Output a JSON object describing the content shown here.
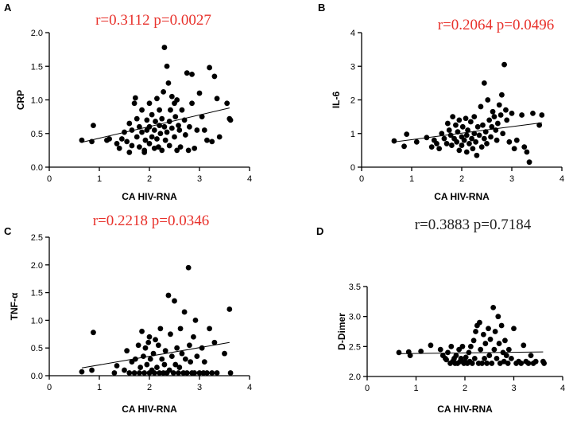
{
  "chart_data": [
    {
      "type": "scatter",
      "panel": "A",
      "stat_text": "r=0.3112  p=0.0027",
      "stat_color": "#e8312b",
      "xlabel": "CA HIV-RNA",
      "ylabel": "CRP",
      "xlim": [
        0,
        4
      ],
      "ylim": [
        0,
        2.0
      ],
      "xticks": [
        0,
        1,
        2,
        3,
        4
      ],
      "yticks": [
        0.0,
        0.5,
        1.0,
        1.5,
        2.0
      ],
      "xtick_labels": [
        "0",
        "1",
        "2",
        "3",
        "4"
      ],
      "ytick_labels": [
        "0.0",
        "0.5",
        "1.0",
        "1.5",
        "2.0"
      ],
      "regression": {
        "x0": 0.65,
        "y0": 0.37,
        "x1": 3.6,
        "y1": 0.88
      },
      "points": [
        [
          0.65,
          0.4
        ],
        [
          0.85,
          0.38
        ],
        [
          0.88,
          0.62
        ],
        [
          1.15,
          0.4
        ],
        [
          1.2,
          0.42
        ],
        [
          1.35,
          0.35
        ],
        [
          1.4,
          0.28
        ],
        [
          1.45,
          0.42
        ],
        [
          1.5,
          0.52
        ],
        [
          1.55,
          0.38
        ],
        [
          1.6,
          0.22
        ],
        [
          1.6,
          0.65
        ],
        [
          1.65,
          0.55
        ],
        [
          1.65,
          0.32
        ],
        [
          1.7,
          0.95
        ],
        [
          1.72,
          1.03
        ],
        [
          1.75,
          0.72
        ],
        [
          1.75,
          0.45
        ],
        [
          1.8,
          0.3
        ],
        [
          1.8,
          0.6
        ],
        [
          1.85,
          0.85
        ],
        [
          1.85,
          0.52
        ],
        [
          1.9,
          0.25
        ],
        [
          1.9,
          0.22
        ],
        [
          1.92,
          0.4
        ],
        [
          1.95,
          0.7
        ],
        [
          1.95,
          0.55
        ],
        [
          2.0,
          0.95
        ],
        [
          2.0,
          0.6
        ],
        [
          2.0,
          0.35
        ],
        [
          2.05,
          0.78
        ],
        [
          2.05,
          0.45
        ],
        [
          2.1,
          0.55
        ],
        [
          2.1,
          0.28
        ],
        [
          2.12,
          0.68
        ],
        [
          2.15,
          1.02
        ],
        [
          2.15,
          0.42
        ],
        [
          2.18,
          0.3
        ],
        [
          2.2,
          0.62
        ],
        [
          2.2,
          0.85
        ],
        [
          2.22,
          0.5
        ],
        [
          2.25,
          0.25
        ],
        [
          2.25,
          0.72
        ],
        [
          2.28,
          1.12
        ],
        [
          2.3,
          1.78
        ],
        [
          2.3,
          0.6
        ],
        [
          2.32,
          0.4
        ],
        [
          2.35,
          1.5
        ],
        [
          2.35,
          0.52
        ],
        [
          2.38,
          1.25
        ],
        [
          2.4,
          0.68
        ],
        [
          2.4,
          0.32
        ],
        [
          2.42,
          0.85
        ],
        [
          2.45,
          1.05
        ],
        [
          2.45,
          0.58
        ],
        [
          2.5,
          0.45
        ],
        [
          2.5,
          0.95
        ],
        [
          2.52,
          0.75
        ],
        [
          2.55,
          0.25
        ],
        [
          2.55,
          1.0
        ],
        [
          2.58,
          0.62
        ],
        [
          2.6,
          0.55
        ],
        [
          2.62,
          0.3
        ],
        [
          2.65,
          0.85
        ],
        [
          2.7,
          0.7
        ],
        [
          2.72,
          0.48
        ],
        [
          2.75,
          1.4
        ],
        [
          2.78,
          0.25
        ],
        [
          2.8,
          0.6
        ],
        [
          2.85,
          1.38
        ],
        [
          2.85,
          0.95
        ],
        [
          2.9,
          0.28
        ],
        [
          2.95,
          0.55
        ],
        [
          3.0,
          1.1
        ],
        [
          3.05,
          0.75
        ],
        [
          3.1,
          0.55
        ],
        [
          3.15,
          0.4
        ],
        [
          3.2,
          1.48
        ],
        [
          3.25,
          0.38
        ],
        [
          3.3,
          1.35
        ],
        [
          3.35,
          1.02
        ],
        [
          3.4,
          0.45
        ],
        [
          3.55,
          0.95
        ],
        [
          3.6,
          0.72
        ],
        [
          3.62,
          0.7
        ]
      ]
    },
    {
      "type": "scatter",
      "panel": "B",
      "stat_text": "r=0.2064   p=0.0496",
      "stat_color": "#e8312b",
      "xlabel": "CA HIV-RNA",
      "ylabel": "IL-6",
      "xlim": [
        0,
        4
      ],
      "ylim": [
        0,
        4
      ],
      "xticks": [
        0,
        1,
        2,
        3,
        4
      ],
      "yticks": [
        0,
        1,
        2,
        3,
        4
      ],
      "xtick_labels": [
        "0",
        "1",
        "2",
        "3",
        "4"
      ],
      "ytick_labels": [
        "0",
        "1",
        "2",
        "3",
        "4"
      ],
      "regression": {
        "x0": 0.65,
        "y0": 0.75,
        "x1": 3.6,
        "y1": 1.32
      },
      "points": [
        [
          0.65,
          0.78
        ],
        [
          0.85,
          0.62
        ],
        [
          0.9,
          0.98
        ],
        [
          1.1,
          0.75
        ],
        [
          1.3,
          0.88
        ],
        [
          1.4,
          0.6
        ],
        [
          1.45,
          0.8
        ],
        [
          1.5,
          0.7
        ],
        [
          1.55,
          0.55
        ],
        [
          1.6,
          1.0
        ],
        [
          1.65,
          0.85
        ],
        [
          1.7,
          0.7
        ],
        [
          1.72,
          1.3
        ],
        [
          1.75,
          1.1
        ],
        [
          1.78,
          0.95
        ],
        [
          1.8,
          0.65
        ],
        [
          1.82,
          1.5
        ],
        [
          1.85,
          0.85
        ],
        [
          1.88,
          1.25
        ],
        [
          1.9,
          0.75
        ],
        [
          1.92,
          1.05
        ],
        [
          1.95,
          1.4
        ],
        [
          1.95,
          0.5
        ],
        [
          2.0,
          0.9
        ],
        [
          2.0,
          0.65
        ],
        [
          2.02,
          1.2
        ],
        [
          2.05,
          0.8
        ],
        [
          2.08,
          1.45
        ],
        [
          2.1,
          0.95
        ],
        [
          2.1,
          0.45
        ],
        [
          2.12,
          1.1
        ],
        [
          2.15,
          0.7
        ],
        [
          2.18,
          1.35
        ],
        [
          2.2,
          0.85
        ],
        [
          2.22,
          0.55
        ],
        [
          2.25,
          1.5
        ],
        [
          2.25,
          1.0
        ],
        [
          2.28,
          0.75
        ],
        [
          2.3,
          0.35
        ],
        [
          2.32,
          1.2
        ],
        [
          2.35,
          0.95
        ],
        [
          2.38,
          1.8
        ],
        [
          2.4,
          0.6
        ],
        [
          2.42,
          1.25
        ],
        [
          2.45,
          2.5
        ],
        [
          2.45,
          0.85
        ],
        [
          2.48,
          1.05
        ],
        [
          2.5,
          0.7
        ],
        [
          2.52,
          2.0
        ],
        [
          2.55,
          1.4
        ],
        [
          2.58,
          0.9
        ],
        [
          2.6,
          1.2
        ],
        [
          2.62,
          1.65
        ],
        [
          2.65,
          1.5
        ],
        [
          2.68,
          1.1
        ],
        [
          2.7,
          0.8
        ],
        [
          2.72,
          1.3
        ],
        [
          2.75,
          1.85
        ],
        [
          2.78,
          1.55
        ],
        [
          2.8,
          2.15
        ],
        [
          2.82,
          1.0
        ],
        [
          2.85,
          3.05
        ],
        [
          2.88,
          1.7
        ],
        [
          2.9,
          1.4
        ],
        [
          2.95,
          0.75
        ],
        [
          3.0,
          1.6
        ],
        [
          3.05,
          0.55
        ],
        [
          3.1,
          0.8
        ],
        [
          3.2,
          1.55
        ],
        [
          3.25,
          0.6
        ],
        [
          3.3,
          0.45
        ],
        [
          3.35,
          0.15
        ],
        [
          3.42,
          1.6
        ],
        [
          3.55,
          1.25
        ],
        [
          3.6,
          1.55
        ]
      ]
    },
    {
      "type": "scatter",
      "panel": "C",
      "stat_text": "r=0.2218 p=0.0346",
      "stat_color": "#e8312b",
      "xlabel": "CA HIV-RNA",
      "ylabel": "TNF-α",
      "xlim": [
        0,
        4
      ],
      "ylim": [
        0,
        2.5
      ],
      "xticks": [
        0,
        1,
        2,
        3,
        4
      ],
      "yticks": [
        0.0,
        0.5,
        1.0,
        1.5,
        2.0,
        2.5
      ],
      "xtick_labels": [
        "0",
        "1",
        "2",
        "3",
        "4"
      ],
      "ytick_labels": [
        "0.0",
        "0.5",
        "1.0",
        "1.5",
        "2.0",
        "2.5"
      ],
      "regression": {
        "x0": 0.65,
        "y0": 0.14,
        "x1": 3.6,
        "y1": 0.6
      },
      "points": [
        [
          0.65,
          0.07
        ],
        [
          0.85,
          0.1
        ],
        [
          0.88,
          0.78
        ],
        [
          1.3,
          0.05
        ],
        [
          1.35,
          0.18
        ],
        [
          1.5,
          0.1
        ],
        [
          1.55,
          0.45
        ],
        [
          1.6,
          0.05
        ],
        [
          1.65,
          0.25
        ],
        [
          1.7,
          0.05
        ],
        [
          1.72,
          0.3
        ],
        [
          1.78,
          0.55
        ],
        [
          1.8,
          0.05
        ],
        [
          1.82,
          0.15
        ],
        [
          1.85,
          0.8
        ],
        [
          1.88,
          0.35
        ],
        [
          1.9,
          0.05
        ],
        [
          1.92,
          0.5
        ],
        [
          1.95,
          0.2
        ],
        [
          1.98,
          0.6
        ],
        [
          2.0,
          0.05
        ],
        [
          2.0,
          0.7
        ],
        [
          2.02,
          0.3
        ],
        [
          2.05,
          0.1
        ],
        [
          2.08,
          0.4
        ],
        [
          2.1,
          0.05
        ],
        [
          2.12,
          0.65
        ],
        [
          2.15,
          0.15
        ],
        [
          2.18,
          0.55
        ],
        [
          2.2,
          0.05
        ],
        [
          2.22,
          0.85
        ],
        [
          2.25,
          0.3
        ],
        [
          2.28,
          0.05
        ],
        [
          2.3,
          0.2
        ],
        [
          2.32,
          0.45
        ],
        [
          2.35,
          0.05
        ],
        [
          2.38,
          1.45
        ],
        [
          2.4,
          0.1
        ],
        [
          2.42,
          0.75
        ],
        [
          2.45,
          0.35
        ],
        [
          2.48,
          0.05
        ],
        [
          2.5,
          1.35
        ],
        [
          2.52,
          0.2
        ],
        [
          2.55,
          0.5
        ],
        [
          2.58,
          0.05
        ],
        [
          2.6,
          0.15
        ],
        [
          2.62,
          0.85
        ],
        [
          2.65,
          0.4
        ],
        [
          2.68,
          0.05
        ],
        [
          2.7,
          1.15
        ],
        [
          2.72,
          0.3
        ],
        [
          2.75,
          0.05
        ],
        [
          2.78,
          1.95
        ],
        [
          2.8,
          0.55
        ],
        [
          2.82,
          0.25
        ],
        [
          2.85,
          0.05
        ],
        [
          2.88,
          0.7
        ],
        [
          2.9,
          0.05
        ],
        [
          2.92,
          1.0
        ],
        [
          2.95,
          0.35
        ],
        [
          3.0,
          0.05
        ],
        [
          3.05,
          0.5
        ],
        [
          3.08,
          0.05
        ],
        [
          3.1,
          0.25
        ],
        [
          3.15,
          0.05
        ],
        [
          3.2,
          0.85
        ],
        [
          3.25,
          0.05
        ],
        [
          3.3,
          0.6
        ],
        [
          3.35,
          0.05
        ],
        [
          3.5,
          0.4
        ],
        [
          3.6,
          1.2
        ],
        [
          3.62,
          0.05
        ]
      ]
    },
    {
      "type": "scatter",
      "panel": "D",
      "stat_text": "r=0.3883 p=0.7184",
      "stat_color": "#222222",
      "xlabel": "CA HIV-RNA",
      "ylabel": "D-Dimer",
      "xlim": [
        0,
        4
      ],
      "ylim": [
        2.0,
        3.5
      ],
      "xticks": [
        0,
        1,
        2,
        3,
        4
      ],
      "yticks": [
        2.0,
        2.5,
        3.0,
        3.5
      ],
      "xtick_labels": [
        "0",
        "1",
        "2",
        "3",
        "4"
      ],
      "ytick_labels": [
        "2.0",
        "2.5",
        "3.0",
        "3.5"
      ],
      "regression": {
        "x0": 0.65,
        "y0": 2.38,
        "x1": 3.6,
        "y1": 2.41
      },
      "points": [
        [
          0.65,
          2.4
        ],
        [
          0.85,
          2.41
        ],
        [
          0.88,
          2.35
        ],
        [
          1.1,
          2.42
        ],
        [
          1.3,
          2.52
        ],
        [
          1.5,
          2.45
        ],
        [
          1.55,
          2.35
        ],
        [
          1.6,
          2.3
        ],
        [
          1.62,
          2.28
        ],
        [
          1.65,
          2.4
        ],
        [
          1.7,
          2.22
        ],
        [
          1.72,
          2.5
        ],
        [
          1.75,
          2.25
        ],
        [
          1.78,
          2.3
        ],
        [
          1.8,
          2.22
        ],
        [
          1.82,
          2.35
        ],
        [
          1.85,
          2.22
        ],
        [
          1.88,
          2.45
        ],
        [
          1.9,
          2.25
        ],
        [
          1.92,
          2.3
        ],
        [
          1.95,
          2.5
        ],
        [
          1.98,
          2.22
        ],
        [
          2.0,
          2.25
        ],
        [
          2.02,
          2.32
        ],
        [
          2.05,
          2.22
        ],
        [
          2.08,
          2.4
        ],
        [
          2.1,
          2.25
        ],
        [
          2.12,
          2.5
        ],
        [
          2.15,
          2.22
        ],
        [
          2.18,
          2.6
        ],
        [
          2.2,
          2.3
        ],
        [
          2.22,
          2.75
        ],
        [
          2.25,
          2.85
        ],
        [
          2.28,
          2.22
        ],
        [
          2.3,
          2.9
        ],
        [
          2.32,
          2.45
        ],
        [
          2.35,
          2.22
        ],
        [
          2.38,
          2.7
        ],
        [
          2.4,
          2.3
        ],
        [
          2.42,
          2.55
        ],
        [
          2.45,
          2.22
        ],
        [
          2.48,
          2.8
        ],
        [
          2.5,
          2.35
        ],
        [
          2.52,
          2.62
        ],
        [
          2.55,
          2.22
        ],
        [
          2.58,
          3.15
        ],
        [
          2.6,
          2.45
        ],
        [
          2.62,
          2.75
        ],
        [
          2.65,
          2.3
        ],
        [
          2.68,
          3.0
        ],
        [
          2.7,
          2.55
        ],
        [
          2.72,
          2.22
        ],
        [
          2.75,
          2.85
        ],
        [
          2.78,
          2.4
        ],
        [
          2.8,
          2.25
        ],
        [
          2.82,
          2.6
        ],
        [
          2.85,
          2.35
        ],
        [
          2.88,
          2.22
        ],
        [
          2.9,
          2.45
        ],
        [
          2.95,
          2.3
        ],
        [
          3.0,
          2.8
        ],
        [
          3.05,
          2.22
        ],
        [
          3.1,
          2.25
        ],
        [
          3.15,
          2.22
        ],
        [
          3.2,
          2.52
        ],
        [
          3.25,
          2.25
        ],
        [
          3.3,
          2.22
        ],
        [
          3.35,
          2.35
        ],
        [
          3.4,
          2.22
        ],
        [
          3.45,
          2.25
        ],
        [
          3.6,
          2.25
        ],
        [
          3.62,
          2.22
        ]
      ]
    }
  ]
}
